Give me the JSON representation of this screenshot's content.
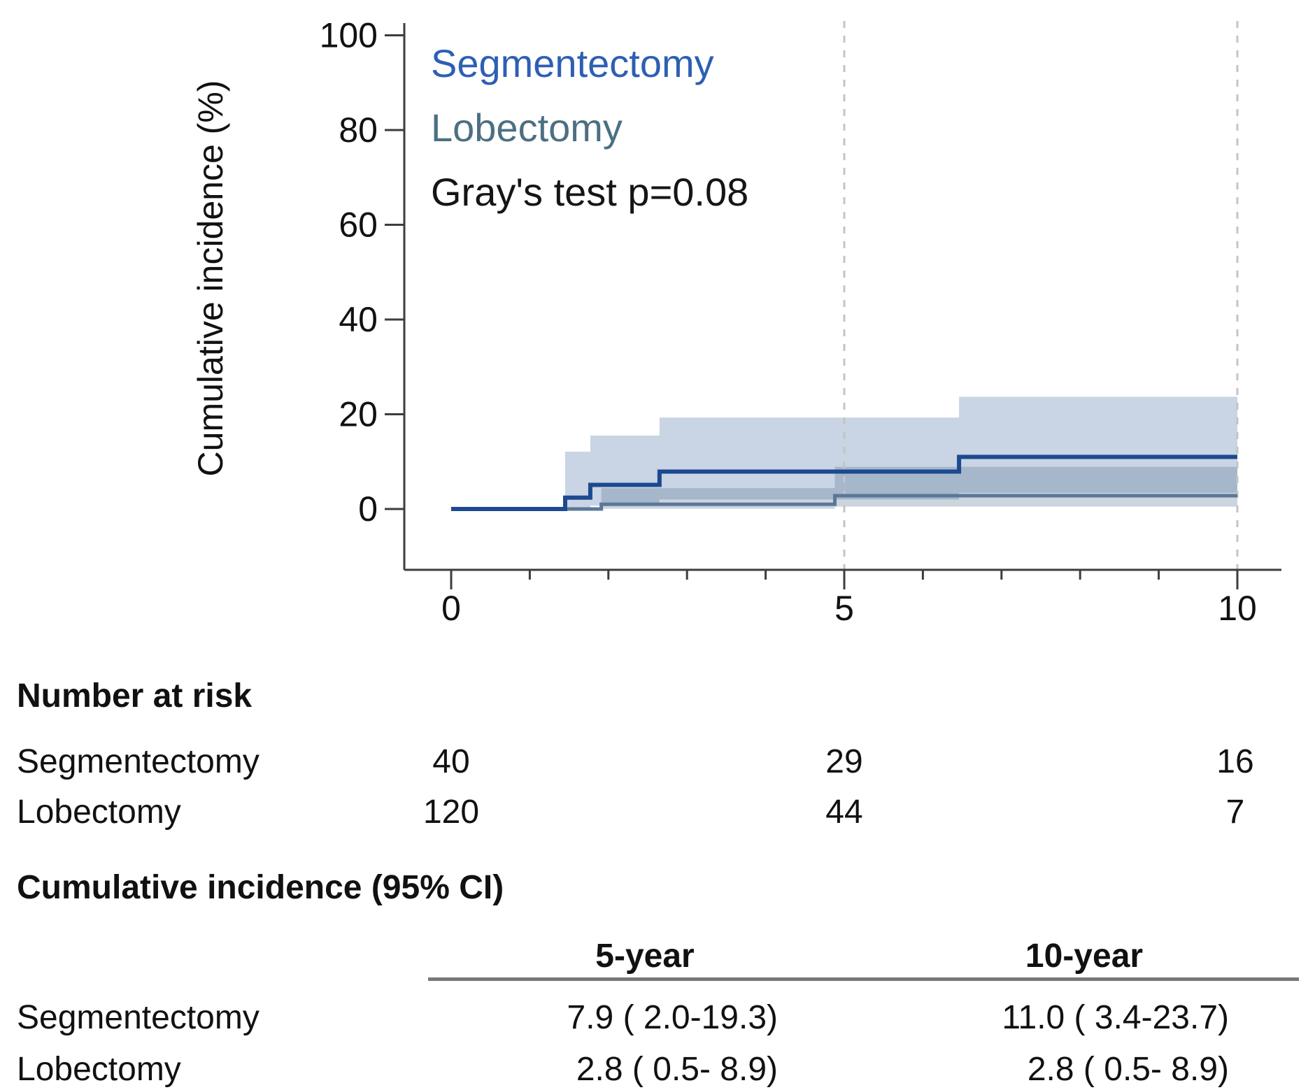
{
  "figure": {
    "background": "#ffffff",
    "axis_color": "#3d3d3d",
    "dashed_line_color": "#c4c4c4",
    "legend": {
      "segmentectomy_label": "Segmentectomy",
      "lobectomy_label": "Lobectomy",
      "segmentectomy_text_color": "#2d5fb3",
      "lobectomy_text_color": "#4c7082",
      "annotation": "Gray's test p=0.08"
    }
  },
  "chart_data": {
    "type": "line",
    "subtype": "cumulative-incidence-step-curves-with-ci-bands",
    "title": "",
    "xlabel": "",
    "ylabel": "Cumulative incidence (%)",
    "xlim": [
      0,
      10
    ],
    "ylim": [
      0,
      100
    ],
    "xticks": [
      0,
      5,
      10
    ],
    "minor_xticks": [
      1,
      2,
      3,
      4,
      6,
      7,
      8,
      9
    ],
    "yticks": [
      0,
      20,
      40,
      60,
      80,
      100
    ],
    "dashed_vlines": [
      5,
      10
    ],
    "grid": "off",
    "legend_position": "top-left-inside",
    "annotation": "Gray's test p=0.08",
    "series": [
      {
        "name": "Segmentectomy",
        "color": "#1c4990",
        "band_color": "rgba(30,74,144,0.24)",
        "steps": [
          [
            0,
            0
          ],
          [
            1.45,
            2.4
          ],
          [
            1.77,
            5.1
          ],
          [
            2.65,
            7.9
          ],
          [
            6.46,
            11.0
          ]
        ],
        "end": 10,
        "ci_segments": [
          {
            "from": 1.45,
            "to": 1.77,
            "lo": 0.2,
            "hi": 12.1
          },
          {
            "from": 1.77,
            "to": 2.65,
            "lo": 0.7,
            "hi": 15.5
          },
          {
            "from": 2.65,
            "to": 6.46,
            "lo": 2.0,
            "hi": 19.3
          },
          {
            "from": 6.46,
            "to": 10,
            "lo": 3.4,
            "hi": 23.7
          }
        ]
      },
      {
        "name": "Lobectomy",
        "color": "#5a7897",
        "band_color": "rgba(90,120,150,0.31)",
        "steps": [
          [
            0,
            0
          ],
          [
            1.91,
            1.0
          ],
          [
            4.88,
            2.8
          ]
        ],
        "end": 10,
        "ci_segments": [
          {
            "from": 1.91,
            "to": 4.88,
            "lo": 0.05,
            "hi": 4.4
          },
          {
            "from": 4.88,
            "to": 10,
            "lo": 0.5,
            "hi": 8.9
          }
        ]
      }
    ]
  },
  "number_at_risk": {
    "title": "Number at risk",
    "time_points": [
      "0",
      "5",
      "10"
    ],
    "rows": [
      {
        "label": "Segmentectomy",
        "values": [
          "40",
          "29",
          "16"
        ]
      },
      {
        "label": "Lobectomy",
        "values": [
          "120",
          "44",
          "7"
        ]
      }
    ]
  },
  "ci_table": {
    "title": "Cumulative incidence (95% CI)",
    "columns": [
      "5-year",
      "10-year"
    ],
    "rows": [
      {
        "label": "Segmentectomy",
        "values": [
          "7.9 ( 2.0-19.3)",
          "11.0 ( 3.4-23.7)"
        ]
      },
      {
        "label": "Lobectomy",
        "values": [
          "2.8 ( 0.5- 8.9)",
          "2.8 ( 0.5- 8.9)"
        ]
      }
    ]
  }
}
